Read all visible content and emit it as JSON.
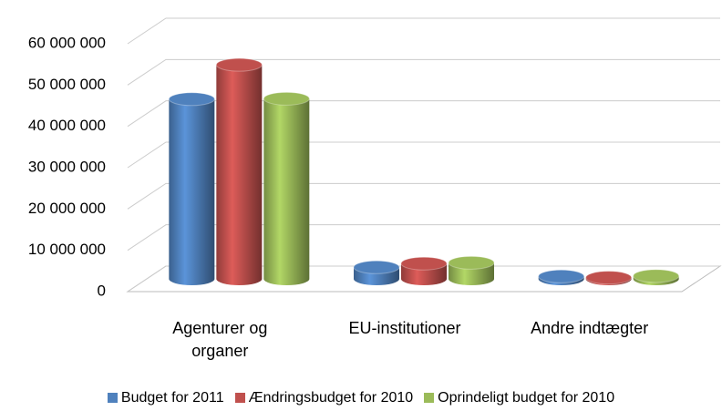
{
  "chart_data": {
    "type": "bar3d",
    "categories": [
      "Agenturer og organer",
      "EU-institutioner",
      "Andre indtægter"
    ],
    "series": [
      {
        "name": "Budget for 2011",
        "color": "#4f81bd",
        "values": [
          43500000,
          2800000,
          600000
        ]
      },
      {
        "name": "Ændringsbudget for 2010",
        "color": "#c0504d",
        "values": [
          51800000,
          3700000,
          300000
        ]
      },
      {
        "name": "Oprindeligt budget for 2010",
        "color": "#9bbb59",
        "values": [
          43600000,
          3900000,
          700000
        ]
      }
    ],
    "ylim": [
      0,
      60000000
    ],
    "yticks": [
      {
        "value": 0,
        "label": "0"
      },
      {
        "value": 10000000,
        "label": "10 000 000"
      },
      {
        "value": 20000000,
        "label": "20 000 000"
      },
      {
        "value": 30000000,
        "label": "30 000 000"
      },
      {
        "value": 40000000,
        "label": "40 000 000"
      },
      {
        "value": 50000000,
        "label": "50 000 000"
      },
      {
        "value": 60000000,
        "label": "60 000 000"
      }
    ],
    "grid": true,
    "legend": "bottom"
  }
}
